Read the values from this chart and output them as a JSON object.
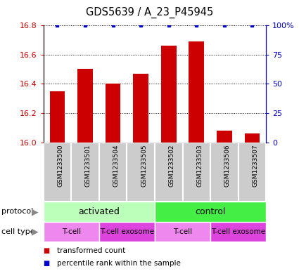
{
  "title": "GDS5639 / A_23_P45945",
  "samples": [
    "GSM1233500",
    "GSM1233501",
    "GSM1233504",
    "GSM1233505",
    "GSM1233502",
    "GSM1233503",
    "GSM1233506",
    "GSM1233507"
  ],
  "bar_values": [
    16.35,
    16.5,
    16.4,
    16.47,
    16.66,
    16.69,
    16.08,
    16.06
  ],
  "percentile_values": [
    100,
    100,
    100,
    100,
    100,
    100,
    100,
    100
  ],
  "ylim_left": [
    16.0,
    16.8
  ],
  "ylim_right": [
    0,
    100
  ],
  "yticks_left": [
    16.0,
    16.2,
    16.4,
    16.6,
    16.8
  ],
  "yticks_right": [
    0,
    25,
    50,
    75,
    100
  ],
  "bar_color": "#cc0000",
  "dot_color": "#0000cc",
  "bar_width": 0.55,
  "protocol_color_activated": "#bbffbb",
  "protocol_color_control": "#44ee44",
  "cell_type_color_light": "#ee88ee",
  "cell_type_color_dark": "#dd44dd",
  "cell_type_labels": [
    "T-cell",
    "T-cell exosome",
    "T-cell",
    "T-cell exosome"
  ],
  "legend_items": [
    "transformed count",
    "percentile rank within the sample"
  ],
  "legend_colors": [
    "#cc0000",
    "#0000cc"
  ],
  "left_axis_color": "#cc0000",
  "right_axis_color": "#0000cc",
  "sample_box_color": "#cccccc",
  "sample_box_edge": "#ffffff"
}
